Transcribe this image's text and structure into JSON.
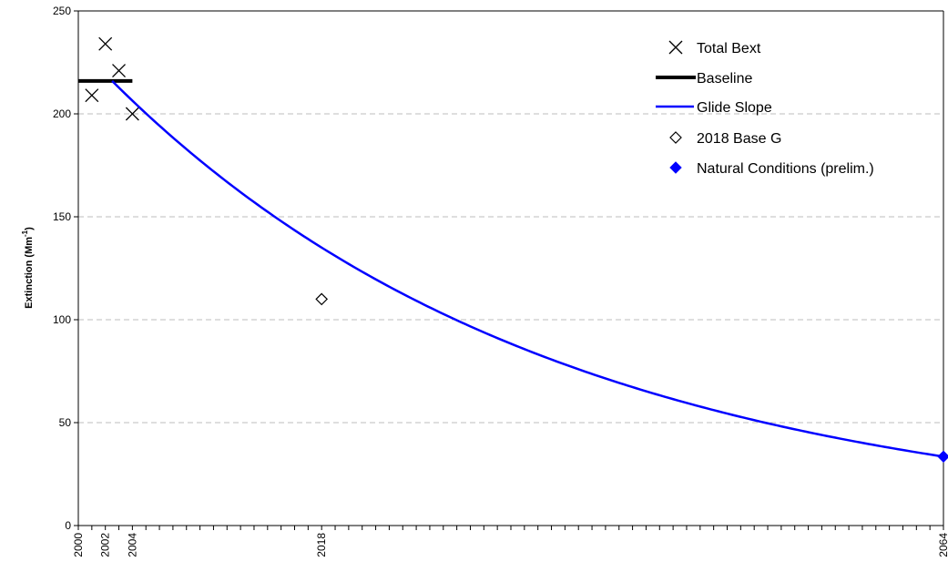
{
  "chart_data": {
    "type": "line",
    "ylabel": "Extinction (Mm",
    "ylabel_sup": "-1",
    "ylabel_close": ")",
    "xlim": [
      2000,
      2064
    ],
    "ylim": [
      0,
      250
    ],
    "yticks": [
      0,
      50,
      100,
      150,
      200,
      250
    ],
    "xtick_labels": [
      2000,
      2002,
      2004,
      2018,
      2064
    ],
    "xminor_step": 1,
    "grid": "horizontal-dashed",
    "legend_position": "top-right",
    "series": [
      {
        "name": "Total Bext",
        "kind": "scatter",
        "marker": "x",
        "color": "#000000",
        "points": [
          [
            2001,
            209
          ],
          [
            2002,
            234
          ],
          [
            2003,
            221
          ],
          [
            2004,
            200
          ]
        ]
      },
      {
        "name": "Baseline",
        "kind": "line",
        "color": "#000000",
        "points": [
          [
            2000,
            216
          ],
          [
            2004,
            216
          ]
        ]
      },
      {
        "name": "Glide Slope",
        "kind": "curve",
        "color": "#0000ff",
        "start": [
          2002.5,
          216
        ],
        "end": [
          2064,
          33.5
        ]
      },
      {
        "name": "2018 Base G",
        "kind": "scatter",
        "marker": "diamond-open",
        "color": "#000000",
        "points": [
          [
            2018,
            110
          ]
        ]
      },
      {
        "name": "Natural Conditions (prelim.)",
        "kind": "scatter",
        "marker": "diamond-filled",
        "color": "#0000ff",
        "points": [
          [
            2064,
            33.5
          ]
        ]
      }
    ]
  }
}
